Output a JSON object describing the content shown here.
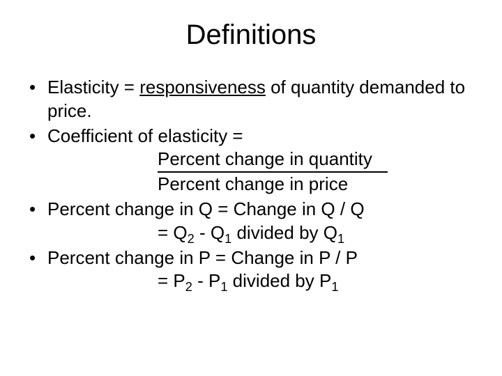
{
  "title": "Definitions",
  "bullets": {
    "b1_pre": "Elasticity = ",
    "b1_underlined": "responsiveness",
    "b1_post": " of quantity demanded to price.",
    "b2_line1": "Coefficient of elasticity =",
    "b2_numerator": "Percent change in quantity",
    "b2_denominator": "Percent change in price",
    "b3_line1": "Percent change in Q =   Change in Q /  Q",
    "b3_line2_pre": "=  Q",
    "b3_line2_mid": " - Q",
    "b3_line2_post": " divided by Q",
    "b4_line1": "Percent change in P =   Change in P /  P",
    "b4_line2_pre": "=  P",
    "b4_line2_mid": " - P",
    "b4_line2_post": " divided by P",
    "sub2": "2",
    "sub1": "1"
  },
  "colors": {
    "background": "#ffffff",
    "text": "#000000"
  },
  "typography": {
    "title_fontsize": 40,
    "body_fontsize": 26,
    "font_family": "Arial"
  }
}
